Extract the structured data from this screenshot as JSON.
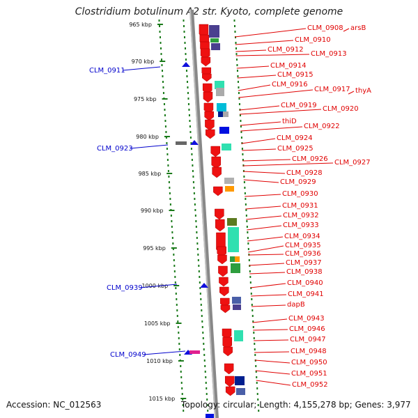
{
  "title": "Clostridium botulinum A2 str. Kyoto, complete genome",
  "footer": {
    "accession": "Accession: NC_012563",
    "topology": "Topology: circular; Length: 4,155,278 bp; Genes: 3,977"
  },
  "colors": {
    "forward_label": "#e00000",
    "reverse_label": "#0000cc",
    "forward_arrow": "#ee1111",
    "reverse_arrow": "#1010dd",
    "dots": "#1a7a1a",
    "backbone": "#888888"
  },
  "ticks": [
    {
      "label": "965 kbp"
    },
    {
      "label": "970 kbp"
    },
    {
      "label": "975 kbp"
    },
    {
      "label": "980 kbp"
    },
    {
      "label": "985 kbp"
    },
    {
      "label": "990 kbp"
    },
    {
      "label": "995 kbp"
    },
    {
      "label": "1000 kbp"
    },
    {
      "label": "1005 kbp"
    },
    {
      "label": "1010 kbp"
    },
    {
      "label": "1015 kbp"
    }
  ],
  "forward_labels": [
    "CLM_0908",
    "arsB",
    "CLM_0910",
    "CLM_0912",
    "CLM_0913",
    "CLM_0914",
    "CLM_0915",
    "CLM_0916",
    "CLM_0917",
    "thyA",
    "CLM_0919",
    "CLM_0920",
    "thiD",
    "CLM_0922",
    "CLM_0924",
    "CLM_0925",
    "CLM_0926",
    "CLM_0927",
    "CLM_0928",
    "CLM_0929",
    "CLM_0930",
    "CLM_0931",
    "CLM_0932",
    "CLM_0933",
    "CLM_0934",
    "CLM_0935",
    "CLM_0936",
    "CLM_0937",
    "CLM_0938",
    "CLM_0940",
    "CLM_0941",
    "dapB",
    "CLM_0943",
    "CLM_0946",
    "CLM_0947",
    "CLM_0948",
    "CLM_0950",
    "CLM_0951",
    "CLM_0952"
  ],
  "reverse_labels": [
    "CLM_0911",
    "CLM_0923",
    "CLM_0939",
    "CLM_0949"
  ]
}
